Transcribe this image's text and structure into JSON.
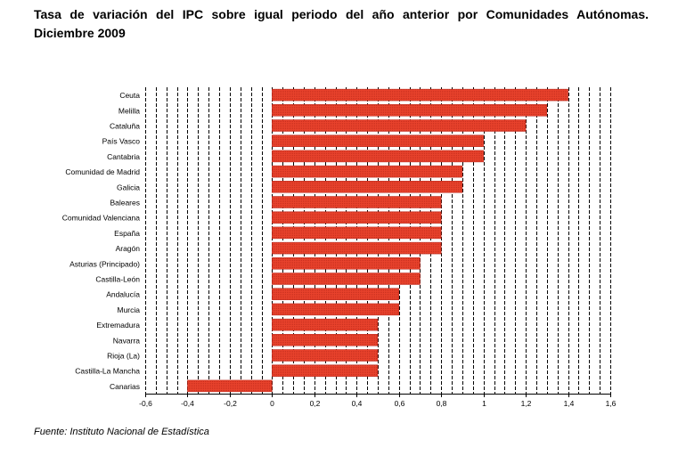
{
  "title_line1": "Tasa de variación del IPC sobre igual periodo del año anterior por Comunidades Autónomas.",
  "title_line2": "Diciembre 2009",
  "source": "Fuente: Instituto Nacional de Estadística",
  "colors": {
    "bar": "#e8422c",
    "bar_edge": "#b8261a",
    "grid": "#000000"
  },
  "chart_data": {
    "type": "bar",
    "orientation": "horizontal",
    "title": "Tasa de variación del IPC sobre igual periodo del año anterior por Comunidades Autónomas. Diciembre 2009",
    "xlabel": "",
    "ylabel": "",
    "xlim": [
      -0.6,
      1.6
    ],
    "xticks": [
      "-0,6",
      "-0,4",
      "-0,2",
      "0",
      "0,2",
      "0,4",
      "0,6",
      "0,8",
      "1",
      "1,2",
      "1,4",
      "1,6"
    ],
    "grid": "vertical dashed",
    "categories": [
      "Ceuta",
      "Melilla",
      "Cataluña",
      "País Vasco",
      "Cantabria",
      "Comunidad de Madrid",
      "Galicia",
      "Baleares",
      "Comunidad Valenciana",
      "España",
      "Aragón",
      "Asturias (Principado)",
      "Castilla-León",
      "Andalucía",
      "Murcia",
      "Extremadura",
      "Navarra",
      "Rioja (La)",
      "Castilla-La Mancha",
      "Canarias"
    ],
    "values": [
      1.4,
      1.3,
      1.2,
      1.0,
      1.0,
      0.9,
      0.9,
      0.8,
      0.8,
      0.8,
      0.8,
      0.7,
      0.7,
      0.6,
      0.6,
      0.5,
      0.5,
      0.5,
      0.5,
      -0.4
    ]
  }
}
